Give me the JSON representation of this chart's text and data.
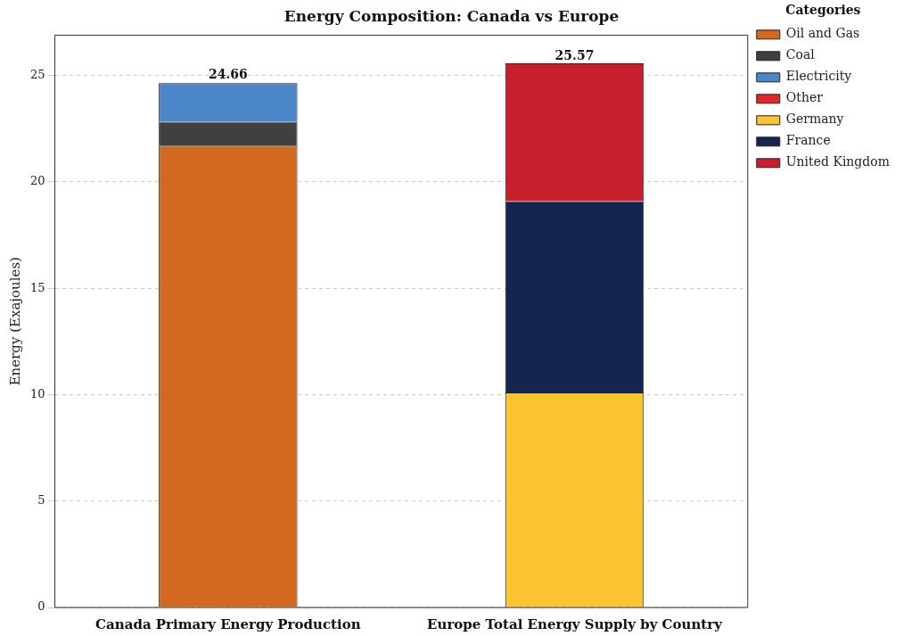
{
  "chart_data": {
    "type": "bar",
    "title": "Energy Composition: Canada vs Europe",
    "ylabel": "Energy (Exajoules)",
    "legend_title": "Categories",
    "categories": [
      "Canada Primary Energy Production",
      "Europe Total Energy Supply by Country"
    ],
    "stacked": true,
    "series": [
      {
        "name": "Oil and Gas",
        "color": "#d2691e",
        "values": [
          21.71,
          null
        ]
      },
      {
        "name": "Coal",
        "color": "#404040",
        "values": [
          1.12,
          null
        ]
      },
      {
        "name": "Electricity",
        "color": "#4a86c8",
        "values": [
          1.81,
          null
        ]
      },
      {
        "name": "Other",
        "color": "#e0262b",
        "values": [
          0.02,
          null
        ]
      },
      {
        "name": "Germany",
        "color": "#fdc431",
        "values": [
          null,
          10.1
        ]
      },
      {
        "name": "France",
        "color": "#16254f",
        "values": [
          null,
          9.0
        ]
      },
      {
        "name": "United Kingdom",
        "color": "#c71f2e",
        "values": [
          null,
          6.47
        ]
      }
    ],
    "totals": [
      "24.66",
      "25.57"
    ],
    "ylim": [
      0,
      26.9
    ],
    "yticks": [
      0,
      5,
      10,
      15,
      20,
      25
    ],
    "grid": "y",
    "legend": "top right"
  }
}
